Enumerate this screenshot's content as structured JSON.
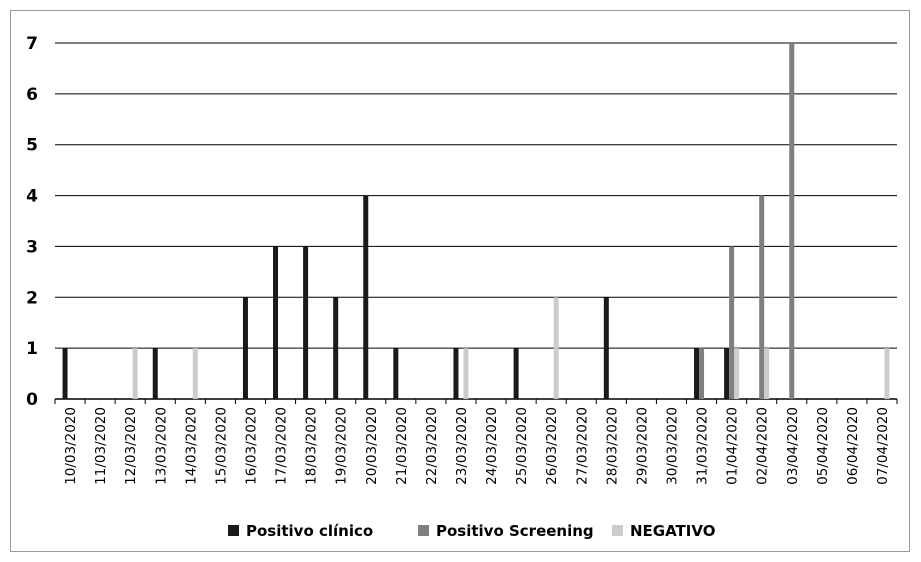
{
  "chart_data": {
    "type": "bar",
    "title": "",
    "xlabel": "",
    "ylabel": "",
    "ylim": [
      0,
      7
    ],
    "yticks": [
      0,
      1,
      2,
      3,
      4,
      5,
      6,
      7
    ],
    "grid": true,
    "legend_position": "bottom",
    "categories": [
      "10/03/2020",
      "11/03/2020",
      "12/03/2020",
      "13/03/2020",
      "14/03/2020",
      "15/03/2020",
      "16/03/2020",
      "17/03/2020",
      "18/03/2020",
      "19/03/2020",
      "20/03/2020",
      "21/03/2020",
      "22/03/2020",
      "23/03/2020",
      "24/03/2020",
      "25/03/2020",
      "26/03/2020",
      "27/03/2020",
      "28/03/2020",
      "29/03/2020",
      "30/03/2020",
      "31/03/2020",
      "01/04/2020",
      "02/04/2020",
      "03/04/2020",
      "05/04/2020",
      "06/04/2020",
      "07/04/2020"
    ],
    "series": [
      {
        "name": "Positivo clínico",
        "color": "#1a1a1a",
        "values": [
          1,
          0,
          0,
          1,
          0,
          0,
          2,
          3,
          3,
          2,
          4,
          1,
          0,
          1,
          0,
          1,
          0,
          0,
          2,
          0,
          0,
          1,
          1,
          0,
          0,
          0,
          0,
          0
        ]
      },
      {
        "name": "Positivo Screening",
        "color": "#7f7f7f",
        "values": [
          0,
          0,
          0,
          0,
          0,
          0,
          0,
          0,
          0,
          0,
          0,
          0,
          0,
          0,
          0,
          0,
          0,
          0,
          0,
          0,
          0,
          1,
          3,
          4,
          7,
          0,
          0,
          0
        ]
      },
      {
        "name": "NEGATIVO",
        "color": "#cccccc",
        "values": [
          0,
          0,
          1,
          0,
          1,
          0,
          0,
          0,
          0,
          0,
          0,
          0,
          0,
          1,
          0,
          0,
          2,
          0,
          0,
          0,
          0,
          0,
          1,
          1,
          0,
          0,
          0,
          1
        ]
      }
    ]
  }
}
